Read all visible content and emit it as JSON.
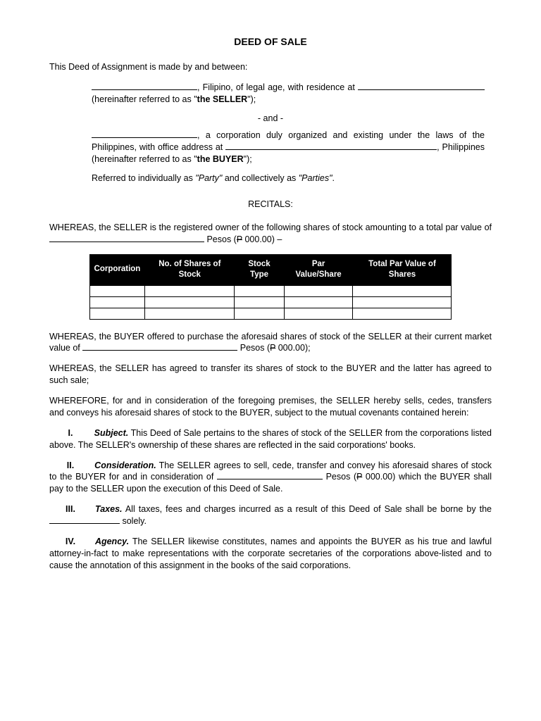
{
  "title": "DEED OF SALE",
  "intro": "This Deed of Assignment is made by and between:",
  "seller_desc_1": ", Filipino, of legal age, with residence at ",
  "seller_desc_2": " (hereinafter referred to as \"",
  "seller_bold": "the SELLER",
  "seller_close": "\");",
  "and_sep": "- and -",
  "buyer_desc_1": ", a corporation duly organized and existing under the laws of the Philippines, with office address at ",
  "buyer_desc_2": ", Philippines (hereinafter referred to as \"",
  "buyer_bold": "the BUYER",
  "buyer_close": "\");",
  "referred": "Referred to individually as ",
  "party_it": "\"Party\"",
  "referred_mid": " and collectively as ",
  "parties_it": "\"Parties\"",
  "referred_end": ".",
  "recitals": "RECITALS:",
  "whereas1_a": "WHEREAS, the SELLER is the registered owner of the following shares of stock amounting to a total par value of ",
  "whereas1_b": " Pesos (",
  "whereas1_amt": "P 000.00",
  "whereas1_c": ") –",
  "table": {
    "headers": [
      "Corporation",
      "No. of Shares of Stock",
      "Stock Type",
      "Par Value/Share",
      "Total Par Value of Shares"
    ],
    "rows": 3
  },
  "whereas2_a": "WHEREAS, the BUYER offered to purchase the aforesaid shares of stock of the SELLER at their current market value of ",
  "whereas2_b": " Pesos (",
  "whereas2_amt": "P 000.00",
  "whereas2_c": ");",
  "whereas3": "WHEREAS, the SELLER has agreed to transfer its shares of stock to the BUYER and the latter has agreed to such sale;",
  "wherefore": "WHEREFORE, for and in consideration of the foregoing premises, the SELLER hereby sells, cedes, transfers and conveys his aforesaid shares of stock to the BUYER, subject to the mutual covenants contained herein:",
  "c1_num": "I.",
  "c1_title": "Subject.",
  "c1_body": "  This Deed of Sale pertains to the shares of stock of the SELLER from the corporations listed above.  The SELLER's ownership of these shares are reflected in the said corporations' books.",
  "c2_num": "II.",
  "c2_title": "Consideration.",
  "c2_body_a": "  The SELLER agrees to sell, cede, transfer and convey his aforesaid shares of stock to the BUYER for and in consideration of ",
  "c2_body_b": " Pesos (",
  "c2_amt": "P 000.00",
  "c2_body_c": ") which the BUYER shall pay to the SELLER upon the execution of this Deed of Sale.",
  "c3_num": "III.",
  "c3_title": "Taxes.",
  "c3_body_a": "  All taxes, fees and charges incurred as a result of this Deed of Sale shall be borne by the ",
  "c3_body_b": " solely.",
  "c4_num": "IV.",
  "c4_title": "Agency.",
  "c4_body": "  The SELLER likewise constitutes, names and appoints the BUYER as his true and lawful attorney-in-fact to make representations with the corporate secretaries of the corporations above-listed and to cause the annotation of this assignment in the books of the said corporations.",
  "colors": {
    "text": "#000000",
    "bg": "#ffffff",
    "table_head_bg": "#000000",
    "table_head_fg": "#ffffff"
  }
}
